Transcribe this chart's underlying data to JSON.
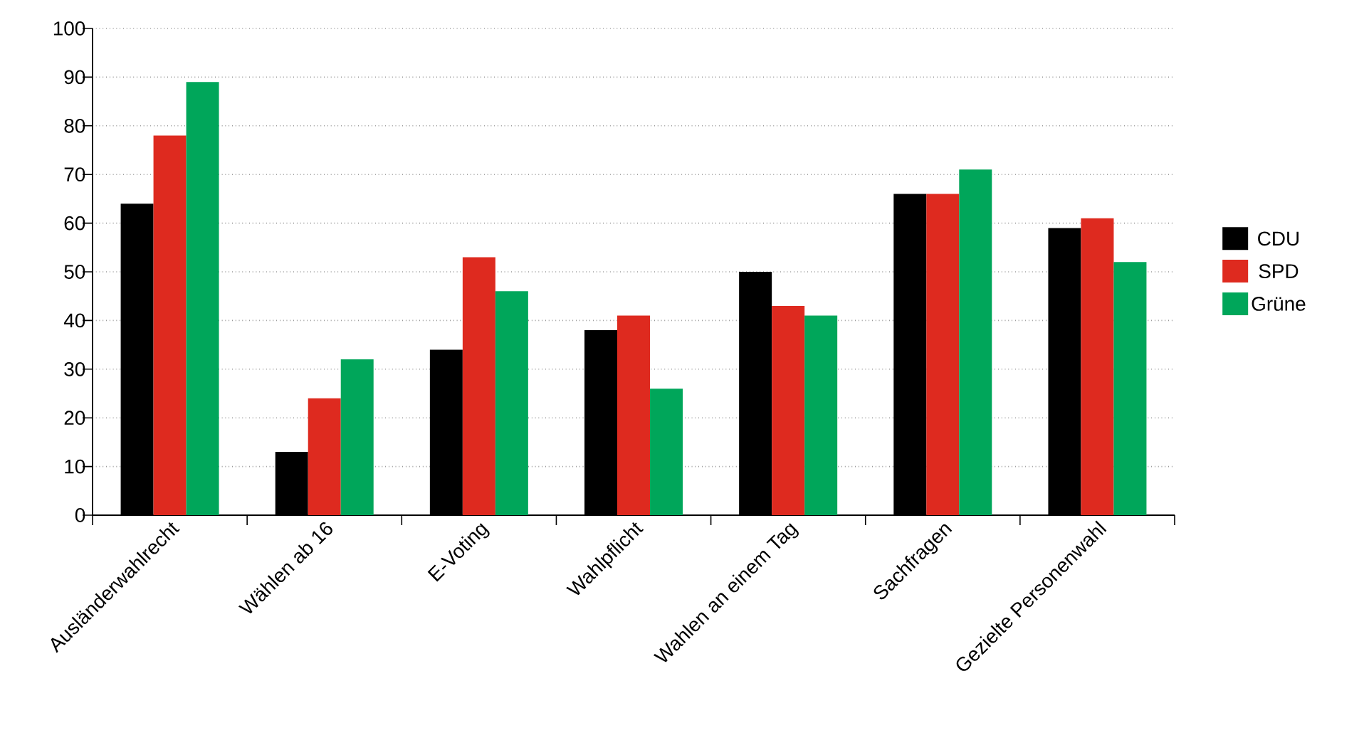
{
  "chart_data": {
    "type": "bar",
    "categories": [
      "Ausländerwahlrecht",
      "Wählen ab 16",
      "E-Voting",
      "Wahlpflicht",
      "Wahlen an einem Tag",
      "Sachfragen",
      "Gezielte Personenwahl"
    ],
    "series": [
      {
        "name": "CDU",
        "color": "#000000",
        "values": [
          64,
          13,
          34,
          38,
          50,
          66,
          59
        ]
      },
      {
        "name": "SPD",
        "color": "#de2a1f",
        "values": [
          78,
          24,
          53,
          41,
          43,
          66,
          61
        ]
      },
      {
        "name": "Grüne",
        "color": "#00a65a",
        "values": [
          89,
          32,
          46,
          26,
          41,
          71,
          52
        ]
      }
    ],
    "ylim": [
      0,
      100
    ],
    "yticks": [
      0,
      10,
      20,
      30,
      40,
      50,
      60,
      70,
      80,
      90,
      100
    ],
    "grid": "y",
    "legend": "right"
  }
}
